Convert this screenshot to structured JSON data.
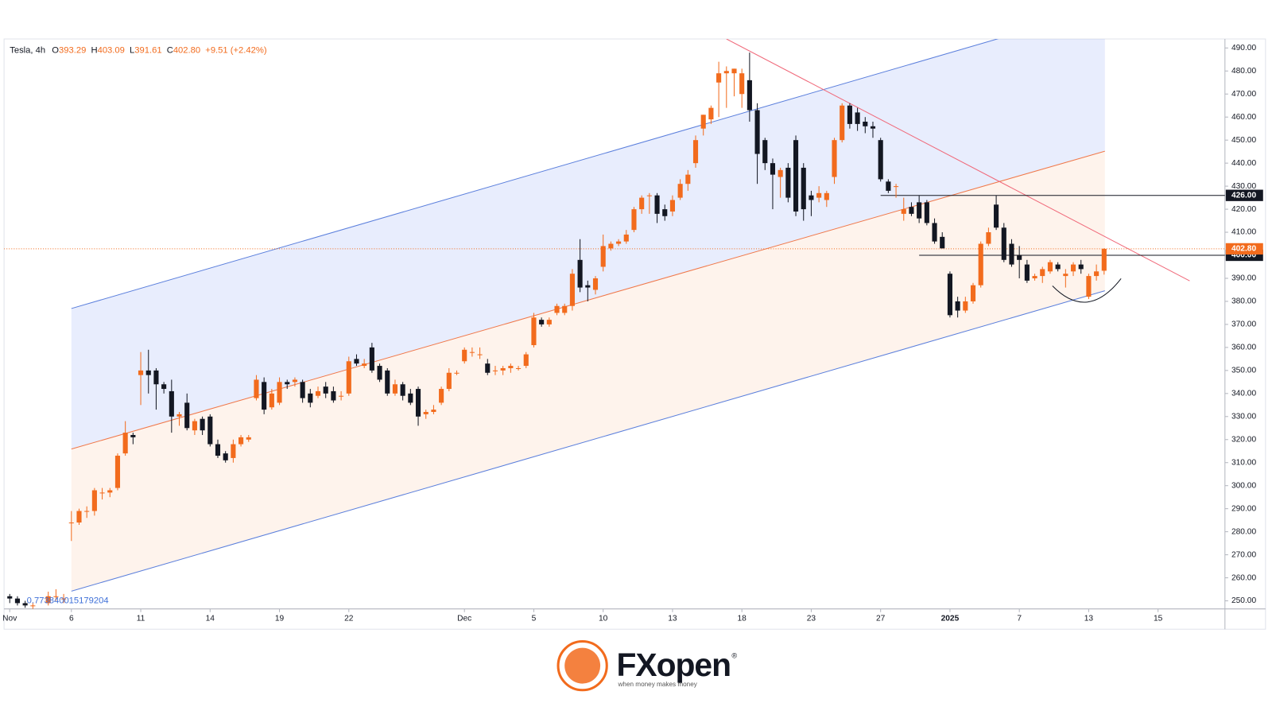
{
  "chart_data": {
    "type": "candlestick",
    "header": {
      "symbol": "Tesla, 4h",
      "items": [
        {
          "key": "O",
          "value": "393.29"
        },
        {
          "key": "H",
          "value": "403.09"
        },
        {
          "key": "L",
          "value": "391.61"
        },
        {
          "key": "C",
          "value": "402.80"
        }
      ],
      "change": "+9.51 (+2.42%)"
    },
    "up_color": "#f26b1d",
    "down_color": "#131722",
    "xlim": [
      -0.737,
      157.68
    ],
    "ylim": [
      246.5,
      493.9
    ],
    "xticks": [
      {
        "value": 0,
        "label": "Nov"
      },
      {
        "value": 8,
        "label": "6"
      },
      {
        "value": 17,
        "label": "11"
      },
      {
        "value": 26,
        "label": "14"
      },
      {
        "value": 35,
        "label": "19"
      },
      {
        "value": 44,
        "label": "22"
      },
      {
        "value": 59,
        "label": "Dec"
      },
      {
        "value": 68,
        "label": "5"
      },
      {
        "value": 77,
        "label": "10"
      },
      {
        "value": 86,
        "label": "13"
      },
      {
        "value": 95,
        "label": "18"
      },
      {
        "value": 104,
        "label": "23"
      },
      {
        "value": 113,
        "label": "27"
      },
      {
        "value": 122,
        "label": "2025"
      },
      {
        "value": 131,
        "label": "7"
      },
      {
        "value": 140,
        "label": "13"
      },
      {
        "value": 149,
        "label": "15"
      }
    ],
    "yticks": [
      {
        "value": 250,
        "label": "250.00"
      },
      {
        "value": 260,
        "label": "260.00"
      },
      {
        "value": 270,
        "label": "270.00"
      },
      {
        "value": 280,
        "label": "280.00"
      },
      {
        "value": 290,
        "label": "290.00"
      },
      {
        "value": 300,
        "label": "300.00"
      },
      {
        "value": 310,
        "label": "310.00"
      },
      {
        "value": 320,
        "label": "320.00"
      },
      {
        "value": 330,
        "label": "330.00"
      },
      {
        "value": 340,
        "label": "340.00"
      },
      {
        "value": 350,
        "label": "350.00"
      },
      {
        "value": 360,
        "label": "360.00"
      },
      {
        "value": 370,
        "label": "370.00"
      },
      {
        "value": 380,
        "label": "380.00"
      },
      {
        "value": 390,
        "label": "390.00"
      },
      {
        "value": 400,
        "label": "400.00"
      },
      {
        "value": 410,
        "label": "410.00"
      },
      {
        "value": 420,
        "label": "420.00"
      },
      {
        "value": 430,
        "label": "430.00"
      },
      {
        "value": 440,
        "label": "440.00"
      },
      {
        "value": 450,
        "label": "450.00"
      },
      {
        "value": 460,
        "label": "460.00"
      },
      {
        "value": 470,
        "label": "470.00"
      },
      {
        "value": 480,
        "label": "480.00"
      },
      {
        "value": 490,
        "label": "490.00"
      }
    ],
    "x": [
      0,
      1,
      2,
      3,
      5,
      6,
      7,
      8,
      9,
      10,
      11,
      12,
      13,
      14,
      15,
      16,
      17,
      18,
      19,
      20,
      21,
      22,
      23,
      24,
      25,
      26,
      27,
      28,
      29,
      30,
      31,
      32,
      33,
      34,
      35,
      36,
      37,
      38,
      39,
      40,
      41,
      42,
      43,
      44,
      45,
      46,
      47,
      48,
      49,
      50,
      51,
      52,
      53,
      54,
      55,
      56,
      57,
      58,
      59,
      60,
      61,
      62,
      63,
      64,
      65,
      66,
      67,
      68,
      69,
      70,
      71,
      72,
      73,
      74,
      75,
      76,
      77,
      78,
      79,
      80,
      81,
      82,
      83,
      84,
      85,
      86,
      87,
      88,
      89,
      90,
      91,
      92,
      93,
      94,
      95,
      96,
      97,
      98,
      99,
      100,
      101,
      102,
      103,
      104,
      105,
      106,
      107,
      108,
      109,
      110,
      111,
      112,
      113,
      114,
      115,
      116,
      117,
      118,
      119,
      120,
      121,
      122,
      123,
      124,
      125,
      126,
      127,
      128,
      129,
      130,
      131,
      132,
      133,
      134,
      135,
      136,
      137,
      138,
      139,
      140,
      141,
      142
    ],
    "open": [
      252,
      251,
      249,
      248,
      249,
      252,
      251,
      284,
      284,
      289,
      289,
      297,
      297,
      299,
      314,
      322,
      348,
      350,
      350,
      344,
      341,
      330,
      336,
      324,
      329,
      330,
      318,
      314,
      312,
      318,
      320,
      338,
      345,
      334,
      336,
      345,
      345,
      345,
      340,
      339,
      343,
      341,
      339,
      340,
      355,
      352,
      360,
      352,
      350,
      340,
      344,
      340,
      342,
      331,
      332,
      336,
      342,
      349,
      354,
      358,
      357,
      353,
      350,
      350,
      351,
      351,
      352,
      361,
      372,
      370,
      375,
      375,
      378,
      398,
      387,
      385,
      395,
      403,
      405,
      406,
      411,
      420,
      426,
      426,
      420,
      419,
      425,
      431,
      440,
      455,
      459,
      475,
      479,
      479,
      470,
      476,
      463,
      450,
      440,
      434,
      438,
      450,
      438,
      426,
      425,
      424,
      434,
      450,
      465,
      462,
      458,
      456,
      450,
      432,
      430,
      418,
      421,
      423,
      423,
      414,
      408,
      392,
      380,
      376,
      380,
      387,
      405,
      422,
      412,
      405,
      400,
      396,
      390,
      391,
      393,
      396,
      391,
      393,
      396,
      382,
      391,
      393.29
    ],
    "high": [
      253,
      252,
      250,
      249,
      254,
      255,
      253,
      289,
      290,
      291,
      299,
      299,
      299,
      314,
      328,
      323,
      358,
      359,
      351,
      345,
      346,
      332,
      340,
      329,
      330,
      331,
      320,
      315,
      320,
      322,
      322,
      348,
      347,
      342,
      347,
      346,
      347,
      346,
      342,
      343,
      345,
      343,
      341,
      356,
      357,
      355,
      362,
      353,
      351,
      346,
      345,
      342,
      343,
      333,
      335,
      343,
      351,
      350,
      360,
      360,
      360,
      355,
      352,
      352,
      353,
      352,
      358,
      375,
      373,
      373,
      379,
      379,
      394,
      407,
      389,
      391,
      409,
      406,
      407,
      411,
      421,
      426,
      427,
      427,
      422,
      426,
      433,
      437,
      452,
      461,
      465,
      484,
      482,
      481,
      481,
      488,
      466,
      451,
      442,
      438,
      440,
      452,
      440,
      428,
      430,
      428,
      451,
      466,
      466,
      464,
      460,
      458,
      451,
      433,
      431,
      425,
      423,
      426,
      424,
      416,
      410,
      393,
      382,
      382,
      388,
      406,
      412,
      426,
      414,
      407,
      404,
      398,
      392,
      395,
      398,
      397,
      394,
      397,
      398,
      392,
      396,
      403.09
    ],
    "low": [
      249,
      248,
      247,
      246,
      248,
      250,
      249,
      276,
      283,
      286,
      287,
      294,
      295,
      298,
      313,
      318,
      335,
      340,
      333,
      340,
      323,
      326,
      324,
      322,
      322,
      317,
      312,
      310,
      310,
      317,
      319,
      337,
      331,
      333,
      335,
      342,
      343,
      336,
      334,
      338,
      338,
      336,
      337,
      339,
      352,
      351,
      349,
      345,
      339,
      339,
      337,
      335,
      326,
      329,
      331,
      335,
      341,
      348,
      353,
      356,
      355,
      348,
      348,
      348,
      349,
      350,
      351,
      360,
      369,
      369,
      374,
      374,
      376,
      384,
      380,
      383,
      393,
      402,
      404,
      405,
      410,
      418,
      418,
      414,
      415,
      417,
      424,
      428,
      438,
      452,
      457,
      460,
      464,
      469,
      464,
      458,
      431,
      437,
      420,
      425,
      423,
      417,
      415,
      417,
      423,
      421,
      431,
      449,
      455,
      454,
      453,
      451,
      432,
      427,
      425,
      415,
      417,
      414,
      413,
      405,
      403,
      373,
      373,
      375,
      379,
      386,
      404,
      411,
      397,
      395,
      390,
      388,
      389,
      388,
      392,
      393,
      386,
      391,
      392,
      381,
      389,
      391.61
    ],
    "close": [
      251,
      249,
      248,
      248,
      252,
      252,
      251,
      284,
      289,
      289,
      298,
      297,
      298,
      313,
      323,
      321,
      350,
      348,
      344,
      342,
      330,
      331,
      325,
      328,
      324,
      318,
      313,
      311,
      318,
      321,
      321,
      346,
      333,
      340,
      345,
      344,
      346,
      338,
      336,
      341,
      340,
      337,
      339,
      354,
      353,
      353,
      350,
      346,
      340,
      344,
      339,
      336,
      330,
      332,
      333,
      342,
      349,
      349,
      359,
      358,
      357,
      349,
      350,
      351,
      352,
      351,
      357,
      373,
      370,
      372,
      378,
      378,
      392,
      386,
      386,
      390,
      404,
      405,
      406,
      409,
      420,
      425,
      426,
      418,
      417,
      424,
      431,
      435,
      450,
      461,
      464,
      479,
      480,
      481,
      479,
      463,
      444,
      440,
      435,
      437,
      425,
      419,
      420,
      424,
      427,
      427,
      450,
      465,
      457,
      457,
      456,
      455,
      433,
      428,
      430,
      420,
      418,
      416,
      414,
      406,
      403,
      374,
      376,
      380,
      387,
      405,
      410,
      412,
      398,
      396,
      398,
      389,
      391,
      394,
      397,
      394,
      392,
      396,
      394,
      391,
      393,
      402.8
    ],
    "channel": {
      "x": [
        8,
        142.1
      ],
      "upper": [
        376.9,
        507.5
      ],
      "middle": [
        315.9,
        445.2
      ],
      "lower": [
        254.2,
        384.6
      ]
    },
    "trendline": {
      "x": [
        93,
        153.1
      ],
      "y": [
        493.9,
        388.9
      ]
    },
    "levels": [
      {
        "value": 426,
        "label": "426.00",
        "from": 113
      },
      {
        "value": 400,
        "label": "400.00",
        "from": 118
      }
    ],
    "last_price": {
      "value": 402.8,
      "label": "402.80"
    },
    "arc": {
      "x": [
        135.3,
        139.8,
        144.2
      ],
      "y": [
        386.7,
        379.7,
        389.9
      ]
    },
    "ratio_label": "0.773840015179204"
  },
  "branding": {
    "name": "FXopen",
    "registered": "®",
    "tagline": "when money makes money"
  }
}
